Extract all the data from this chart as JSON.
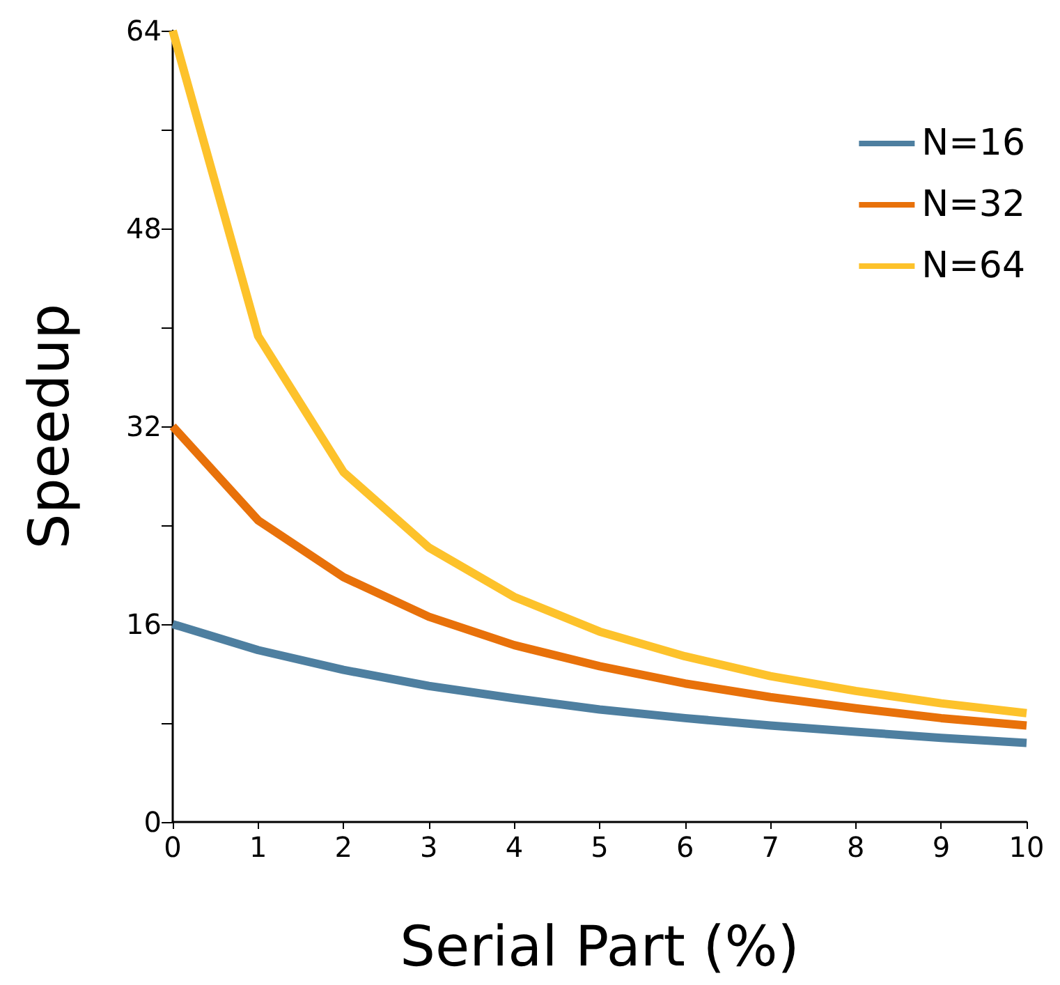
{
  "chart_data": {
    "type": "line",
    "xlabel": "Serial Part (%)",
    "ylabel": "Speedup",
    "x": [
      0,
      1,
      2,
      3,
      4,
      5,
      6,
      7,
      8,
      9,
      10
    ],
    "series": [
      {
        "name": "N=16",
        "color": "#4e7fa0",
        "values": [
          16,
          13.9,
          12.3,
          11.0,
          10.0,
          9.1,
          8.4,
          7.8,
          7.3,
          6.8,
          6.4
        ]
      },
      {
        "name": "N=32",
        "color": "#e8710a",
        "values": [
          32,
          24.4,
          19.8,
          16.6,
          14.3,
          12.6,
          11.2,
          10.1,
          9.2,
          8.4,
          7.8
        ]
      },
      {
        "name": "N=64",
        "color": "#fdc22b",
        "values": [
          64,
          39.3,
          28.3,
          22.2,
          18.2,
          15.4,
          13.4,
          11.8,
          10.6,
          9.6,
          8.8
        ]
      }
    ],
    "xlim": [
      0,
      10
    ],
    "xticks": [
      0,
      1,
      2,
      3,
      4,
      5,
      6,
      7,
      8,
      9,
      10
    ],
    "ylim": [
      0,
      64
    ],
    "yticks": [
      0,
      {
        "value": 8,
        "label": null
      },
      16,
      {
        "value": 24,
        "label": null
      },
      32,
      {
        "value": 40,
        "label": null
      },
      48,
      {
        "value": 56,
        "label": null
      },
      64
    ],
    "grid": false,
    "legend": "top right",
    "marker": "none",
    "line_style": "solid"
  }
}
